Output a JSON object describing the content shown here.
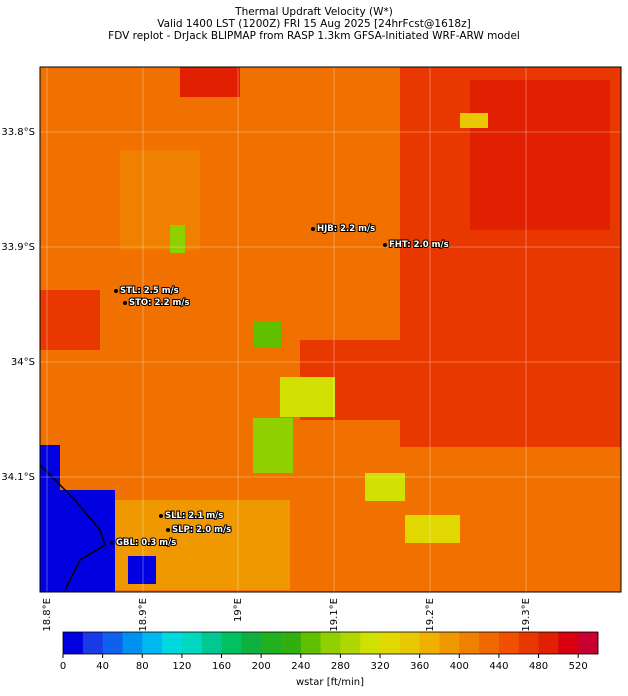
{
  "header": {
    "title_lines": [
      "Thermal Updraft Velocity (W*)",
      "Valid 1400 LST (1200Z) FRI 15 Aug 2025 [24hrFcst@1618z]",
      "FDV replot - DrJack BLIPMAP from RASP 1.3km GFSA-Initiated WRF-ARW model"
    ]
  },
  "map": {
    "lat_labels": [
      "33.8°S",
      "33.9°S",
      "34°S",
      "34.1°S"
    ],
    "lon_labels": [
      "18.8°E",
      "18.9°E",
      "19°E",
      "19.1°E",
      "19.2°E",
      "19.3°E"
    ],
    "stations": [
      {
        "label": "STL: 2.5 m/s"
      },
      {
        "label": "STO: 2.2 m/s"
      },
      {
        "label": "HJB: 2.2 m/s"
      },
      {
        "label": "FHT: 2.0 m/s"
      },
      {
        "label": "SLL: 2.1 m/s"
      },
      {
        "label": "SLP: 2.0 m/s"
      },
      {
        "label": "GBL: 0.3 m/s"
      }
    ]
  },
  "colorbar": {
    "label": "wstar [ft/min]",
    "lim": [
      0,
      540
    ],
    "ticks": [
      0,
      40,
      80,
      120,
      160,
      200,
      240,
      280,
      320,
      360,
      400,
      440,
      480,
      520
    ],
    "colors": [
      "#0000e0",
      "#1a3ae8",
      "#1060f0",
      "#0090f0",
      "#00b8f0",
      "#00d8e0",
      "#00d8c0",
      "#00c890",
      "#00c060",
      "#10b040",
      "#20b020",
      "#30b010",
      "#60c000",
      "#90d000",
      "#b0d800",
      "#d0e000",
      "#e0d800",
      "#e8c800",
      "#f0b000",
      "#f09800",
      "#f08000",
      "#f06800",
      "#f05000",
      "#e83800",
      "#e02000",
      "#d80010",
      "#c80030"
    ]
  }
}
